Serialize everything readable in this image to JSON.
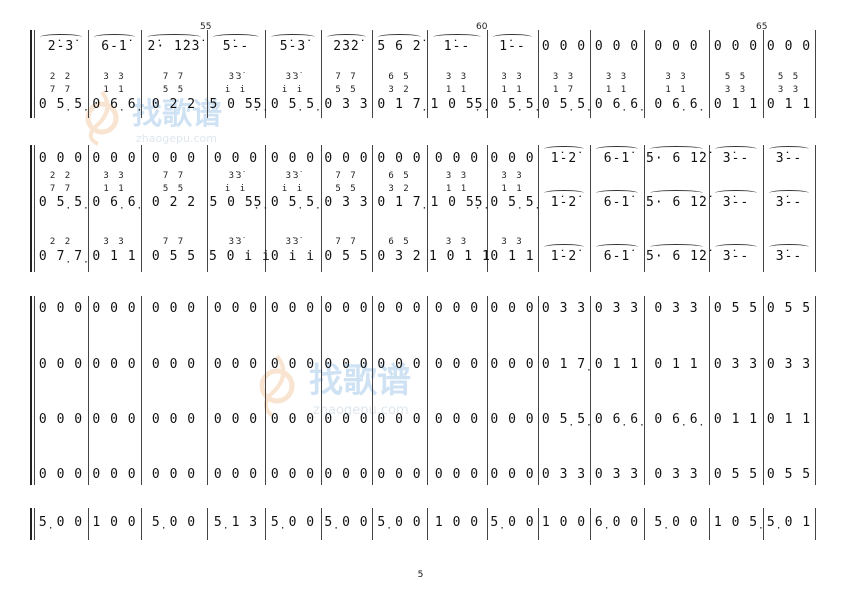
{
  "page": {
    "number": "5"
  },
  "measure_numbers": [
    "55",
    "60",
    "65"
  ],
  "watermark": {
    "brand": "找歌谱",
    "site": "zhaogepu.com"
  },
  "system1": {
    "melody": [
      "2̇-3̇",
      "6-1̇",
      "2̇· 1̇2̇3̇",
      "5̇--",
      "5̇-3̇",
      "2̇3̇2̇",
      "5 6 2̇",
      "1̇--",
      "1̇--",
      "0 0 0",
      "0 0 0",
      "0 0 0",
      "0 0 0",
      "0 0 0"
    ],
    "harmony_top": [
      "",
      "",
      "",
      "",
      "",
      "",
      "",
      "",
      "",
      "",
      "",
      "",
      "",
      ""
    ],
    "harmony_hi": [
      "2 2",
      "3 3",
      "7 7",
      "3̇3̇",
      "3̇3̇",
      "7 7",
      "6 5",
      "3 3",
      "3 3",
      "3 3",
      "3 3",
      "3 3",
      "5 5",
      "5 5"
    ],
    "harmony_mid": [
      "7 7",
      "1 1",
      "5 5",
      "i i",
      "i i",
      "5 5",
      "3 2",
      "1 1",
      "1 1",
      "1 7",
      "1 1",
      "1 1",
      "3 3",
      "3 3"
    ],
    "bass": [
      "0 5̣ 5̣",
      "0 6̣ 6̣",
      "0 2 2",
      "5 0 5̣5̣",
      "0 5̣ 5̣",
      "0 3 3",
      "0 1 7̣",
      "1 0 5̣5̣",
      "0 5̣ 5̣",
      "0 5̣ 5̣",
      "0 6̣ 6̣",
      "0 6̣ 6̣",
      "0 1 1",
      "0 1 1"
    ]
  },
  "system2": {
    "line1": [
      "0 0 0",
      "0 0 0",
      "0 0 0",
      "0 0 0",
      "0 0 0",
      "0 0 0",
      "0 0 0",
      "0 0 0",
      "0 0 0",
      "1̇-2̇",
      "6-1̇",
      "5· 6 1̇2̇",
      "3̇--",
      "3̇--"
    ],
    "line1_harm_a": [
      "2 2",
      "3 3",
      "7 7",
      "3̇3̇",
      "3̇3̇",
      "7 7",
      "6 5",
      "3 3",
      "3 3",
      "",
      "",
      "",
      "",
      ""
    ],
    "line1_harm_b": [
      "7 7",
      "1 1",
      "5 5",
      "i i",
      "i i",
      "5 5",
      "3 2",
      "1 1",
      "1 1",
      "",
      "",
      "",
      "",
      ""
    ],
    "line2": [
      "0 5̣ 5̣",
      "0 6̣ 6̣",
      "0 2 2",
      "5 0 5̣5̣",
      "0 5̣ 5̣",
      "0 3 3",
      "0 1 7̣",
      "1 0 5̣5̣",
      "0 5̣ 5̣",
      "1̇-2̇",
      "6-1̇",
      "5· 6 1̇2̇",
      "3̇--",
      "3̇--"
    ],
    "line3_harm": [
      "2 2",
      "3 3",
      "7 7",
      "3̇3̇",
      "3̇3̇",
      "7 7",
      "6 5",
      "3 3",
      "3 3",
      "",
      "",
      "",
      "",
      ""
    ],
    "line3": [
      "0 7̣ 7̣",
      "0 1 1",
      "0 5 5",
      "5 0 i i",
      "0 i i",
      "0 5 5",
      "0 3 2",
      "1 0 1 1",
      "0 1 1",
      "1̇-2̇",
      "6-1̇",
      "5· 6 1̇2̇",
      "3̇--",
      "3̇--"
    ]
  },
  "system3": {
    "line1": [
      "0 0 0",
      "0 0 0",
      "0 0 0",
      "0 0 0",
      "0 0 0",
      "0 0 0",
      "0 0 0",
      "0 0 0",
      "0 0 0",
      "0 3 3",
      "0 3 3",
      "0 3 3",
      "0 5 5",
      "0 5 5"
    ],
    "line2": [
      "0 0 0",
      "0 0 0",
      "0 0 0",
      "0 0 0",
      "0 0 0",
      "0 0 0",
      "0 0 0",
      "0 0 0",
      "0 0 0",
      "0 1 7̣",
      "0 1 1",
      "0 1 1",
      "0 3 3",
      "0 3 3"
    ],
    "line3": [
      "0 0 0",
      "0 0 0",
      "0 0 0",
      "0 0 0",
      "0 0 0",
      "0 0 0",
      "0 0 0",
      "0 0 0",
      "0 0 0",
      "0 5̣ 5̣",
      "0 6̣ 6̣",
      "0 6̣ 6̣",
      "0 1 1",
      "0 1 1"
    ],
    "line4": [
      "0 0 0",
      "0 0 0",
      "0 0 0",
      "0 0 0",
      "0 0 0",
      "0 0 0",
      "0 0 0",
      "0 0 0",
      "0 0 0",
      "0 3 3",
      "0 3 3",
      "0 3 3",
      "0 5 5",
      "0 5 5"
    ]
  },
  "system4": {
    "bass": [
      "5̣ 0 0",
      "1 0 0",
      "5̣ 0 0",
      "5̣ 1 3",
      "5̣ 0 0",
      "5̣ 0 0",
      "5̣ 0 0",
      "1 0 0",
      "5̣ 0 0",
      "1 0 0",
      "6̣ 0 0",
      "5̣ 0 0",
      "1 0 5̣",
      "5̣ 0 1"
    ]
  }
}
